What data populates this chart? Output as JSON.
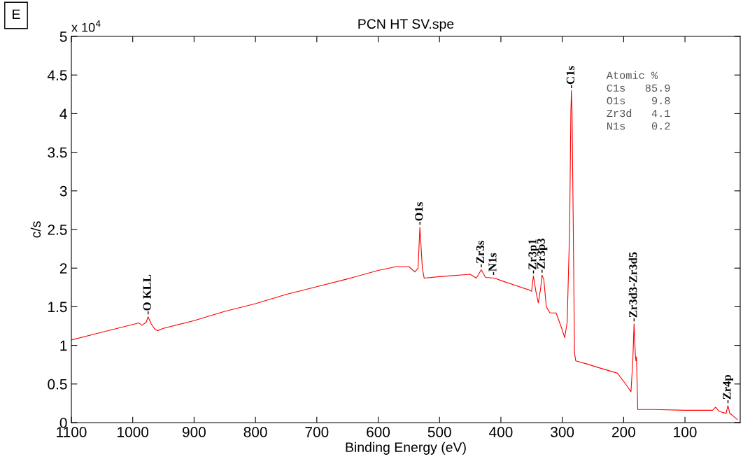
{
  "chart_data": {
    "type": "line",
    "title": "PCN HT SV.spe",
    "xlabel": "Binding Energy (eV)",
    "ylabel": "c/s",
    "xlim": [
      1100,
      10
    ],
    "xticks": [
      1100,
      1000,
      900,
      800,
      700,
      600,
      500,
      400,
      300,
      200,
      100
    ],
    "ylim": [
      0,
      5
    ],
    "yticks": [
      0,
      0.5,
      1,
      1.5,
      2,
      2.5,
      3,
      3.5,
      4,
      4.5,
      5
    ],
    "grid": false,
    "marker": "none",
    "line_style": "solid",
    "series": [
      {
        "color": "#ff0000",
        "x": [
          1100,
          1050,
          1000,
          990,
          985,
          978,
          975,
          970,
          965,
          960,
          950,
          900,
          850,
          800,
          750,
          700,
          650,
          600,
          570,
          550,
          540,
          535,
          532,
          528,
          525,
          500,
          450,
          440,
          432,
          425,
          410,
          400,
          370,
          355,
          350,
          347,
          343,
          339,
          335,
          333,
          330,
          326,
          320,
          310,
          300,
          296,
          292,
          288,
          286,
          285,
          284,
          282,
          280,
          278,
          260,
          240,
          210,
          195,
          188,
          185,
          183,
          181,
          180,
          179,
          177,
          175,
          150,
          100,
          60,
          55,
          50,
          45,
          38,
          33,
          30,
          27,
          22,
          15
        ],
        "values": [
          1.07,
          1.17,
          1.27,
          1.29,
          1.26,
          1.3,
          1.37,
          1.28,
          1.22,
          1.19,
          1.22,
          1.32,
          1.44,
          1.54,
          1.66,
          1.76,
          1.86,
          1.97,
          2.02,
          2.02,
          1.95,
          2.0,
          2.53,
          2.0,
          1.87,
          1.89,
          1.92,
          1.87,
          1.98,
          1.88,
          1.87,
          1.84,
          1.76,
          1.72,
          1.7,
          1.9,
          1.7,
          1.55,
          1.75,
          1.91,
          1.85,
          1.5,
          1.42,
          1.42,
          1.2,
          1.1,
          1.3,
          2.5,
          4.0,
          4.3,
          4.0,
          2.5,
          0.9,
          0.8,
          0.76,
          0.71,
          0.64,
          0.48,
          0.4,
          0.8,
          1.28,
          0.9,
          0.8,
          0.85,
          0.17,
          0.17,
          0.17,
          0.16,
          0.16,
          0.16,
          0.2,
          0.15,
          0.13,
          0.12,
          0.22,
          0.12,
          0.09,
          0.04
        ]
      }
    ],
    "annotations": [
      {
        "text": "-O KLL",
        "x": 975,
        "y": 1.37
      },
      {
        "text": "-O1s",
        "x": 532,
        "y": 2.53
      },
      {
        "text": "-Zr3s",
        "x": 432,
        "y": 1.98
      },
      {
        "text": "-N1s",
        "x": 412,
        "y": 1.88
      },
      {
        "text": "-Zr3p1",
        "x": 347,
        "y": 1.9
      },
      {
        "text": "-Zr3p3",
        "x": 333,
        "y": 1.91
      },
      {
        "text": "-C1s",
        "x": 285,
        "y": 4.3
      },
      {
        "text": "-Zr3d3-Zr3d5",
        "x": 183,
        "y": 1.28
      },
      {
        "text": "-Zr4p",
        "x": 30,
        "y": 0.22
      },
      "E",
      "x 10$^{4}$",
      "Atomic %\nC1s   85.9\nO1s    9.8\nZr3d   4.1\nN1s    0.2"
    ]
  }
}
